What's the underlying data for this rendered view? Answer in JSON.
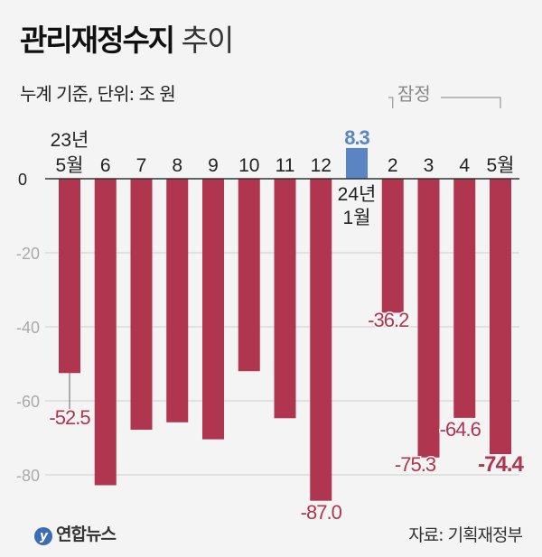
{
  "header": {
    "title_bold": "관리재정수지",
    "title_light": "추이",
    "subtitle": "누계 기준, 단위: 조 원"
  },
  "footer": {
    "logo": "연합뉴스",
    "source": "자료: 기획재정부"
  },
  "chart_data": {
    "type": "bar",
    "categories": [
      "23년 5월",
      "6",
      "7",
      "8",
      "9",
      "10",
      "11",
      "12",
      "24년 1월",
      "2",
      "3",
      "4",
      "5월"
    ],
    "values": [
      -52.5,
      -82.8,
      -67.8,
      -65.8,
      -70.4,
      -52.0,
      -64.7,
      -87.0,
      8.3,
      -36.2,
      -75.3,
      -64.6,
      -74.4
    ],
    "data_labels": [
      "-52.5",
      null,
      null,
      null,
      null,
      null,
      null,
      "-87.0",
      "8.3",
      "-36.2",
      "-75.3",
      "-64.6",
      "-74.4"
    ],
    "annotation": "잠정",
    "annotation_range": [
      "2",
      "5월"
    ],
    "yticks": [
      0,
      -20,
      -40,
      -60,
      -80
    ],
    "ylim": [
      -90,
      10
    ],
    "grid": true,
    "colors": {
      "negative": "#b0354f",
      "positive": "#5b84c4",
      "label_negative": "#b0354f",
      "label_positive": "#5b84c4"
    }
  }
}
